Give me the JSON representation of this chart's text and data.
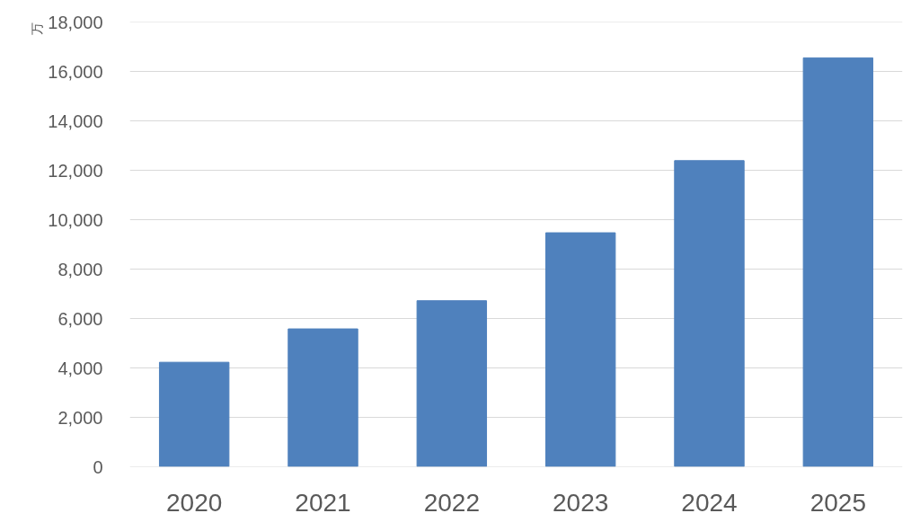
{
  "chart_data": {
    "type": "bar",
    "ylabel": "万",
    "categories": [
      "2020",
      "2021",
      "2022",
      "2023",
      "2024",
      "2025"
    ],
    "values": [
      4230,
      5580,
      6720,
      9470,
      12390,
      16550
    ],
    "color": "#4f81bd",
    "ylim": [
      0,
      18000
    ],
    "yticks": [
      0,
      {
        "value": 2000,
        "label": "2,000"
      },
      {
        "value": 4000,
        "label": "4,000"
      },
      {
        "value": 6000,
        "label": "6,000"
      },
      {
        "value": 8000,
        "label": "8,000"
      },
      {
        "value": 10000,
        "label": "10,000"
      },
      {
        "value": 12000,
        "label": "12,000"
      },
      {
        "value": 14000,
        "label": "14,000"
      },
      {
        "value": 16000,
        "label": "16,000"
      },
      {
        "value": 18000,
        "label": "18,000"
      }
    ],
    "grid": "y"
  }
}
